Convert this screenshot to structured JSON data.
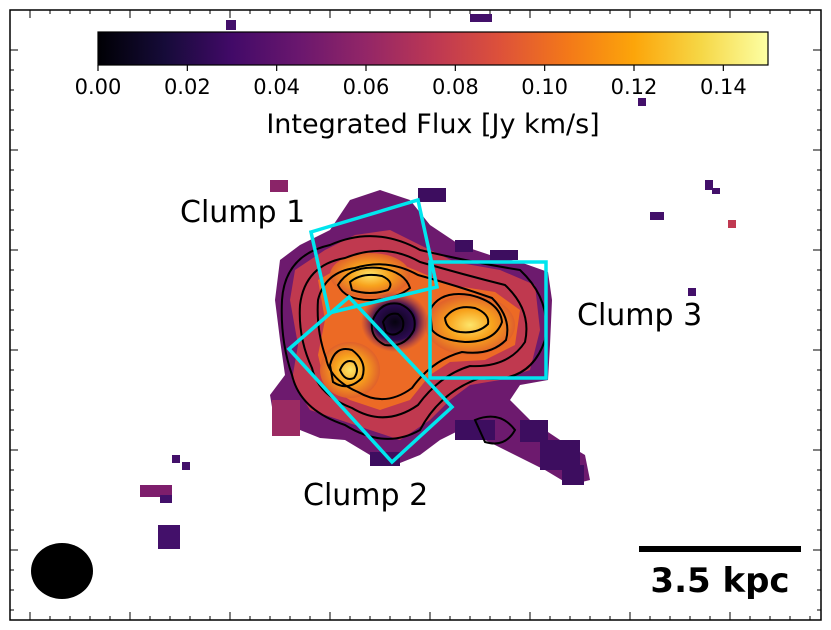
{
  "chart_data": {
    "type": "heatmap",
    "title": "",
    "colormap": "inferno",
    "colorbar": {
      "label": "Integrated Flux [Jy km/s]",
      "range": [
        0.0,
        0.15
      ],
      "ticks": [
        "0.00",
        "0.02",
        "0.04",
        "0.06",
        "0.08",
        "0.10",
        "0.12",
        "0.14"
      ],
      "tick_values": [
        0.0,
        0.02,
        0.04,
        0.06,
        0.08,
        0.1,
        0.12,
        0.14
      ],
      "placement": "top"
    },
    "regions": [
      {
        "name": "Clump 1",
        "color": "#00e5ee"
      },
      {
        "name": "Clump 2",
        "color": "#00e5ee"
      },
      {
        "name": "Clump 3",
        "color": "#00e5ee"
      }
    ],
    "scale_bar": {
      "label": "3.5 kpc"
    },
    "beam": {
      "color": "#000000"
    },
    "contours": {
      "color": "#000000"
    },
    "grid": false,
    "axes_labels_shown": false
  }
}
